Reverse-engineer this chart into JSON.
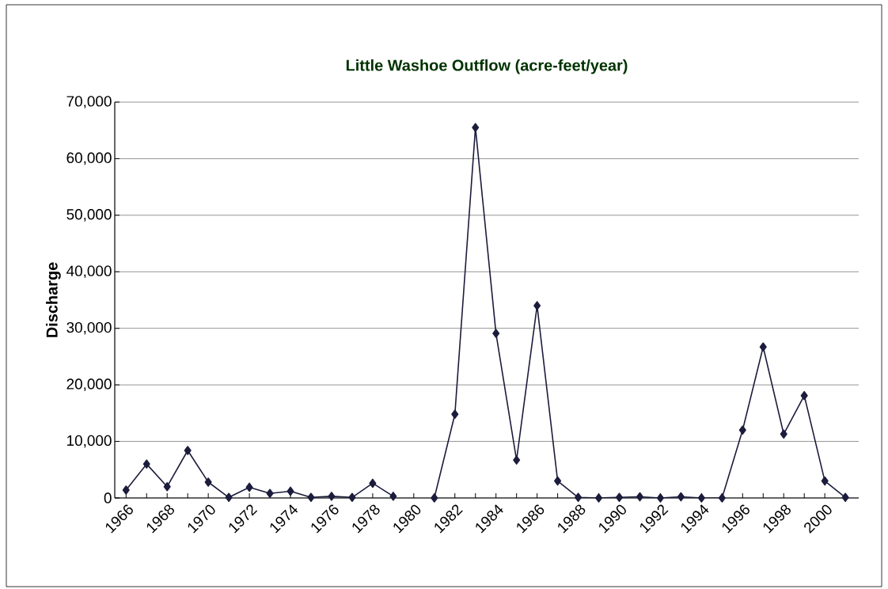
{
  "chart_data": {
    "type": "line",
    "title": "Little Washoe Outflow (acre-feet/year)",
    "ylabel": "Discharge",
    "categories": [
      "1966",
      null,
      "1968",
      null,
      "1970",
      null,
      "1972",
      null,
      "1974",
      null,
      "1976",
      null,
      "1978",
      null,
      "1980",
      null,
      "1982",
      null,
      "1984",
      null,
      "1986",
      null,
      "1988",
      null,
      "1990",
      null,
      "1992",
      null,
      "1994",
      null,
      "1996",
      null,
      "1998",
      null,
      "2000",
      null
    ],
    "series": [
      {
        "color": "#1c1c3c",
        "values": [
          1400,
          6000,
          2000,
          8400,
          2800,
          100,
          1900,
          800,
          1200,
          100,
          300,
          100,
          2600,
          300,
          null,
          0,
          14800,
          65500,
          29100,
          6700,
          34000,
          3000,
          100,
          0,
          100,
          200,
          0,
          200,
          0,
          0,
          12000,
          26700,
          11300,
          18100,
          3000,
          100
        ]
      }
    ],
    "ylim": [
      0,
      70000
    ],
    "yticks": [
      {
        "value": 0,
        "label": "0"
      },
      {
        "value": 10000,
        "label": "10,000"
      },
      {
        "value": 20000,
        "label": "20,000"
      },
      {
        "value": 30000,
        "label": "30,000"
      },
      {
        "value": 40000,
        "label": "40,000"
      },
      {
        "value": 50000,
        "label": "50,000"
      },
      {
        "value": 60000,
        "label": "60,000"
      },
      {
        "value": 70000,
        "label": "70,000"
      }
    ],
    "grid": "y",
    "marker": "diamond",
    "line_style": "solid"
  }
}
